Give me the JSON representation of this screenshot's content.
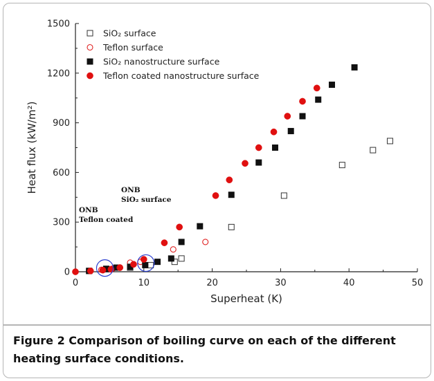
{
  "caption": {
    "label": "Figure 2",
    "text": "Comparison of boiling curve on each of the different heating surface conditions."
  },
  "chart_data": {
    "type": "scatter",
    "xlabel": "Superheat (K)",
    "ylabel": "Heat flux (kW/m²)",
    "xlim": [
      0,
      50
    ],
    "ylim": [
      0,
      1500
    ],
    "xticks": [
      0,
      10,
      20,
      30,
      40,
      50
    ],
    "yticks": [
      0,
      300,
      600,
      900,
      1200,
      1500
    ],
    "grid": false,
    "legend_position": "top-left",
    "series": [
      {
        "name": "SiO₂ surface",
        "marker": "open-square",
        "color": "#333333",
        "points": [
          [
            2,
            5
          ],
          [
            4.5,
            15
          ],
          [
            8,
            25
          ],
          [
            11,
            40
          ],
          [
            14.5,
            60
          ],
          [
            15.5,
            80
          ],
          [
            22.8,
            270
          ],
          [
            30.5,
            460
          ],
          [
            39,
            645
          ],
          [
            43.5,
            735
          ],
          [
            46,
            790
          ]
        ]
      },
      {
        "name": "Teflon surface",
        "marker": "open-circle",
        "color": "#e02020",
        "points": [
          [
            2,
            5
          ],
          [
            3.8,
            12
          ],
          [
            5.5,
            20
          ],
          [
            8,
            55
          ],
          [
            9.5,
            60
          ],
          [
            14.3,
            135
          ],
          [
            19,
            180
          ]
        ]
      },
      {
        "name": "SiO₂ nanostructure surface",
        "marker": "filled-square",
        "color": "#111111",
        "points": [
          [
            2,
            5
          ],
          [
            4.5,
            18
          ],
          [
            6,
            25
          ],
          [
            8,
            30
          ],
          [
            10.2,
            40
          ],
          [
            12,
            60
          ],
          [
            14,
            80
          ],
          [
            15.5,
            180
          ],
          [
            18.2,
            275
          ],
          [
            22.8,
            465
          ],
          [
            26.8,
            660
          ],
          [
            29.2,
            750
          ],
          [
            31.5,
            850
          ],
          [
            33.2,
            940
          ],
          [
            35.5,
            1040
          ],
          [
            37.5,
            1130
          ],
          [
            40.8,
            1235
          ]
        ]
      },
      {
        "name": "Teflon coated nanostructure surface",
        "marker": "filled-circle",
        "color": "#e01010",
        "points": [
          [
            0,
            0
          ],
          [
            2.2,
            5
          ],
          [
            4,
            10
          ],
          [
            5.2,
            15
          ],
          [
            6.5,
            25
          ],
          [
            8.5,
            45
          ],
          [
            10,
            75
          ],
          [
            13,
            175
          ],
          [
            15.2,
            270
          ],
          [
            20.5,
            460
          ],
          [
            22.5,
            555
          ],
          [
            24.8,
            655
          ],
          [
            26.8,
            750
          ],
          [
            29,
            845
          ],
          [
            31,
            940
          ],
          [
            33.2,
            1030
          ],
          [
            35.3,
            1110
          ]
        ]
      }
    ],
    "annotations": [
      {
        "lines": [
          "ONB",
          "Teflon coated"
        ],
        "circle_at": [
          4.3,
          10
        ]
      },
      {
        "lines": [
          "ONB",
          "SiO₂ surface"
        ],
        "circle_at": [
          10.3,
          40
        ]
      }
    ]
  }
}
